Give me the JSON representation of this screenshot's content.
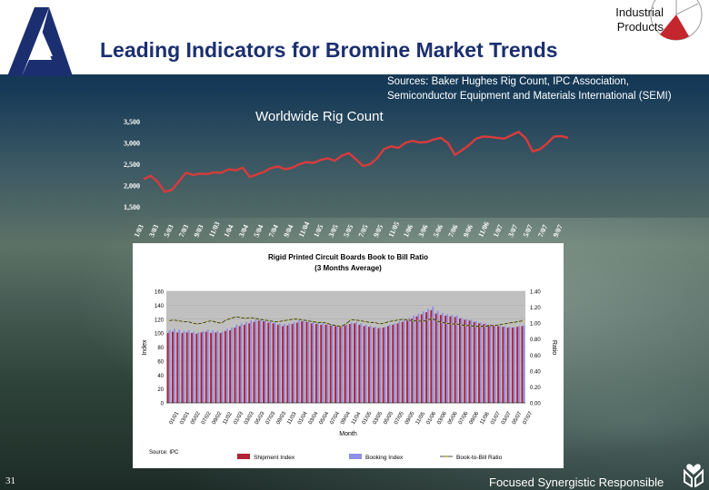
{
  "header": {
    "title": "Leading Indicators for Bromine Market Trends",
    "brand_line1": "Industrial",
    "brand_line2": "Products"
  },
  "sources": {
    "line1": "Sources: Baker Hughes Rig Count, IPC Association,",
    "line2": "Semiconductor Equipment and Materials International (SEMI)"
  },
  "footer": {
    "slide_number": "31",
    "tagline": "Focused  Synergistic Responsible"
  },
  "colors": {
    "title": "#1b2f70",
    "rig_line": "#d93b3b",
    "shipment": "#b22234",
    "booking": "#8e8ee8",
    "ratio": "#c9c93a",
    "plot_bg": "#c0c0c0"
  },
  "chart_data": [
    {
      "type": "line",
      "title": "Worldwide Rig Count",
      "ylim": [
        1500,
        3500
      ],
      "yticks": [
        "1,500",
        "2,000",
        "2,500",
        "3,000",
        "3,500"
      ],
      "ytick_values": [
        1500,
        2000,
        2500,
        3000,
        3500
      ],
      "xtick_labels": [
        "1/03",
        "3/03",
        "5/03",
        "7/03",
        "9/03",
        "11/03",
        "1/04",
        "3/04",
        "5/04",
        "7/04",
        "9/04",
        "11/04",
        "1/05",
        "3/05",
        "5/05",
        "7/05",
        "9/05",
        "11/05",
        "1/06",
        "3/06",
        "5/06",
        "7/06",
        "9/06",
        "11/06",
        "1/07",
        "3/07",
        "5/07",
        "7/07",
        "9/07"
      ],
      "series": [
        {
          "values": [
            2150,
            2230,
            2080,
            1850,
            1900,
            2100,
            2300,
            2250,
            2280,
            2270,
            2310,
            2300,
            2380,
            2360,
            2420,
            2200,
            2260,
            2320,
            2410,
            2450,
            2380,
            2420,
            2500,
            2550,
            2530,
            2600,
            2640,
            2580,
            2700,
            2760,
            2620,
            2460,
            2500,
            2640,
            2860,
            2920,
            2880,
            3000,
            3050,
            3010,
            3020,
            3080,
            3120,
            3000,
            2720,
            2830,
            2950,
            3100,
            3150,
            3140,
            3120,
            3100,
            3180,
            3260,
            3110,
            2800,
            2850,
            2980,
            3150,
            3160,
            3120
          ]
        }
      ]
    },
    {
      "type": "bar",
      "title": "Rigid Printed Circuit Boards Book to Bill Ratio",
      "subtitle": "(3 Months Average)",
      "xlabel": "Month",
      "ylabel": "Index",
      "y2label": "Ratio",
      "ylim": [
        0,
        160
      ],
      "y2lim": [
        0,
        1.4
      ],
      "yticks": [
        "0",
        "20",
        "40",
        "60",
        "80",
        "100",
        "120",
        "140",
        "160"
      ],
      "y2ticks": [
        "0.00",
        "0.20",
        "0.40",
        "0.60",
        "0.80",
        "1.00",
        "1.20",
        "1.40"
      ],
      "source_note": "Source: IPC",
      "xtick_labels": [
        "01/01",
        "03/01",
        "05/02",
        "07/02",
        "09/02",
        "11/02",
        "01/03",
        "03/03",
        "05/03",
        "07/03",
        "09/03",
        "11/03",
        "01/04",
        "03/04",
        "05/04",
        "07/04",
        "09/04",
        "11/04",
        "01/05",
        "03/05",
        "05/05",
        "07/05",
        "09/05",
        "11/05",
        "01/06",
        "03/06",
        "05/06",
        "07/06",
        "09/06",
        "11/06",
        "01/07",
        "03/07",
        "05/07",
        "07/07"
      ],
      "series": [
        {
          "name": "Shipment Index",
          "values": [
            100,
            102,
            101,
            100,
            101,
            100,
            99,
            101,
            102,
            100,
            101,
            100,
            103,
            104,
            108,
            110,
            112,
            114,
            116,
            118,
            117,
            115,
            114,
            112,
            110,
            111,
            113,
            115,
            117,
            116,
            114,
            113,
            112,
            112,
            111,
            110,
            109,
            111,
            113,
            114,
            112,
            110,
            109,
            108,
            107,
            108,
            110,
            112,
            114,
            116,
            118,
            121,
            124,
            127,
            130,
            133,
            128,
            126,
            125,
            124,
            123,
            121,
            119,
            118,
            116,
            114,
            113,
            112,
            111,
            110,
            109,
            108,
            108,
            109,
            110
          ]
        },
        {
          "name": "Booking Index",
          "values": [
            104,
            106,
            105,
            103,
            104,
            102,
            101,
            103,
            105,
            104,
            103,
            102,
            106,
            108,
            112,
            114,
            116,
            118,
            119,
            120,
            119,
            117,
            116,
            114,
            113,
            114,
            116,
            118,
            119,
            118,
            116,
            115,
            114,
            113,
            112,
            111,
            110,
            112,
            115,
            116,
            114,
            112,
            110,
            109,
            108,
            109,
            112,
            114,
            117,
            119,
            122,
            125,
            128,
            131,
            135,
            138,
            132,
            129,
            127,
            126,
            125,
            122,
            120,
            119,
            117,
            115,
            114,
            113,
            112,
            111,
            110,
            109,
            109,
            110,
            111
          ]
        },
        {
          "name": "Book-to-Bill Ratio",
          "values": [
            1.03,
            1.04,
            1.03,
            1.02,
            1.02,
            1.0,
            0.99,
            1.0,
            1.02,
            1.03,
            1.01,
            1.0,
            1.04,
            1.06,
            1.08,
            1.07,
            1.06,
            1.07,
            1.06,
            1.05,
            1.04,
            1.03,
            1.02,
            1.02,
            1.03,
            1.04,
            1.05,
            1.05,
            1.04,
            1.03,
            1.02,
            1.01,
            1.01,
            1.0,
            0.98,
            0.97,
            0.96,
            0.99,
            1.04,
            1.04,
            1.03,
            1.02,
            1.01,
            1.01,
            0.99,
            1.0,
            1.02,
            1.03,
            1.04,
            1.05,
            1.04,
            1.03,
            1.03,
            1.02,
            1.04,
            1.06,
            1.03,
            1.01,
            1.0,
            0.99,
            0.99,
            0.98,
            0.97,
            0.97,
            0.96,
            0.96,
            0.96,
            0.97,
            0.97,
            0.98,
            0.99,
            1.0,
            1.01,
            1.02,
            1.03
          ]
        }
      ]
    }
  ]
}
